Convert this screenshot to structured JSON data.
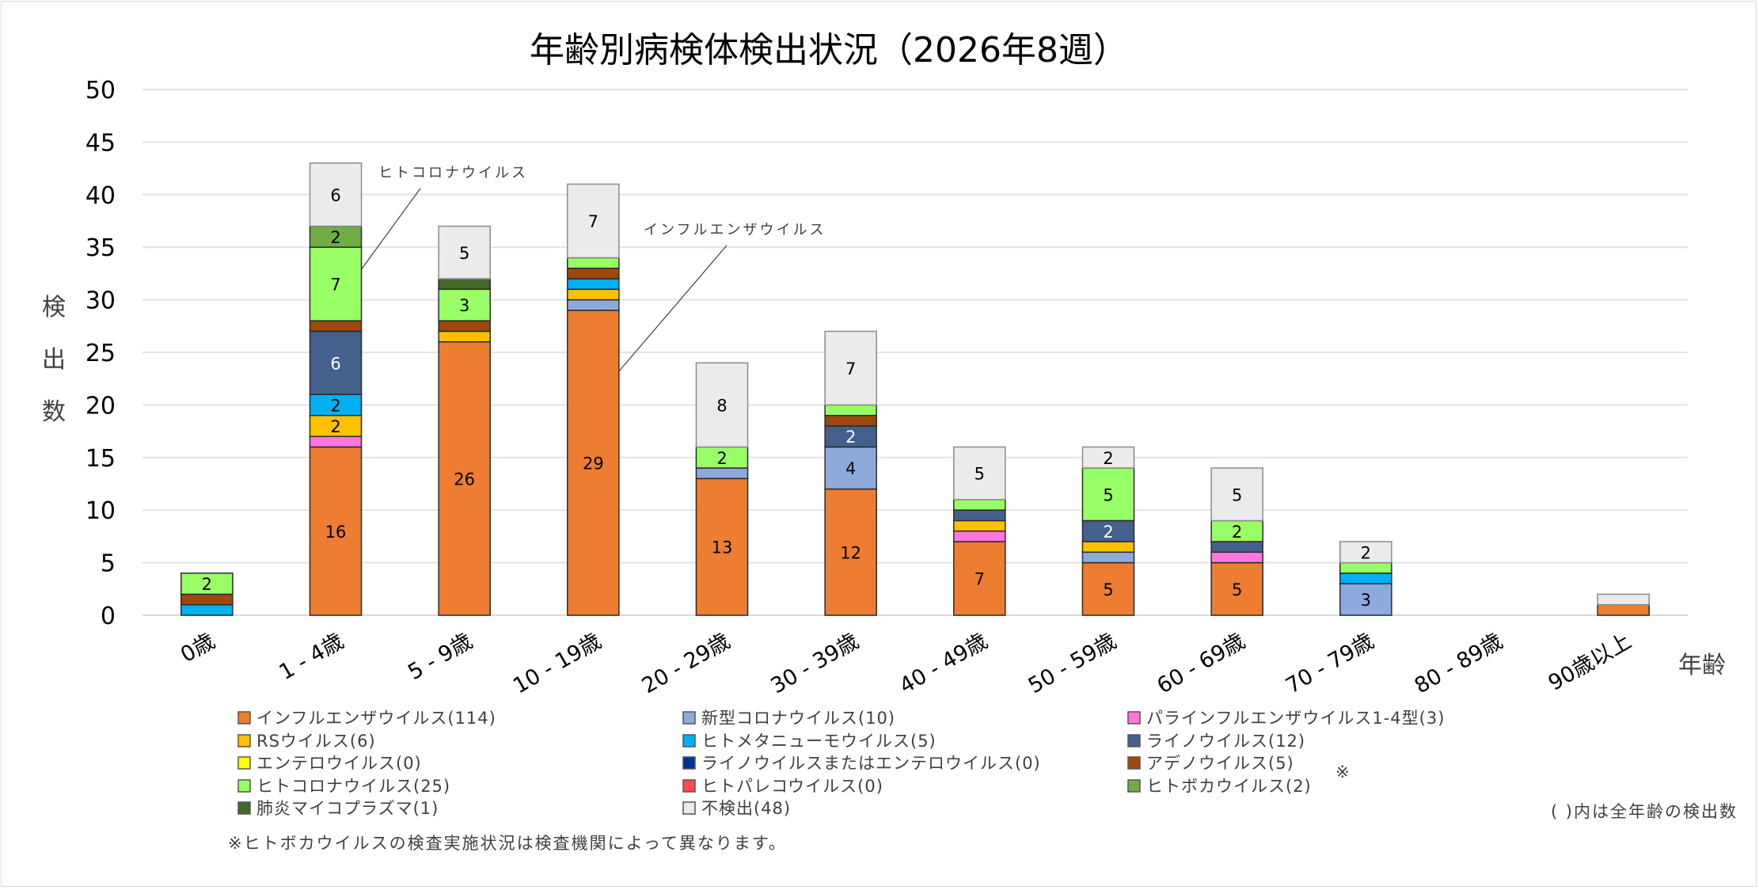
{
  "chart_data": {
    "type": "bar",
    "stacked": true,
    "title": "年齢別病検体検出状況（2026年8週）",
    "xlabel": "年齢",
    "ylabel": "検出数",
    "ylim": [
      0,
      50
    ],
    "yticks": [
      0,
      5,
      10,
      15,
      20,
      25,
      30,
      35,
      40,
      45,
      50
    ],
    "grid": true,
    "legend_position": "bottom",
    "categories": [
      "0歳",
      "1 - 4歳",
      "5 - 9歳",
      "10 - 19歳",
      "20 - 29歳",
      "30 - 39歳",
      "40 - 49歳",
      "50 - 59歳",
      "60 - 69歳",
      "70 - 79歳",
      "80 - 89歳",
      "90歳以上"
    ],
    "series": [
      {
        "name": "インフルエンザウイルス",
        "total": 114,
        "color": "#ED7D31",
        "label_color": "#000000",
        "values": [
          0,
          16,
          26,
          29,
          13,
          12,
          7,
          5,
          5,
          0,
          0,
          1
        ]
      },
      {
        "name": "新型コロナウイルス",
        "total": 10,
        "color": "#8EA9DB",
        "label_color": "#000000",
        "values": [
          0,
          0,
          0,
          1,
          1,
          4,
          0,
          1,
          0,
          3,
          0,
          0
        ]
      },
      {
        "name": "パラインフルエンザウイルス1-4型",
        "total": 3,
        "color": "#FF77DD",
        "label_color": "#000000",
        "values": [
          0,
          1,
          0,
          0,
          0,
          0,
          1,
          0,
          1,
          0,
          0,
          0
        ]
      },
      {
        "name": "RSウイルス",
        "total": 6,
        "color": "#FFC000",
        "label_color": "#000000",
        "values": [
          0,
          2,
          1,
          1,
          0,
          0,
          1,
          1,
          0,
          0,
          0,
          0
        ]
      },
      {
        "name": "ヒトメタニューモウイルス",
        "total": 5,
        "color": "#00B0F0",
        "label_color": "#000000",
        "values": [
          1,
          2,
          0,
          1,
          0,
          0,
          0,
          0,
          0,
          1,
          0,
          0
        ]
      },
      {
        "name": "ライノウイルス",
        "total": 12,
        "color": "#44618E",
        "label_color": "#ffffff",
        "values": [
          0,
          6,
          0,
          0,
          0,
          2,
          1,
          2,
          1,
          0,
          0,
          0
        ]
      },
      {
        "name": "エンテロウイルス",
        "total": 0,
        "color": "#FFFF00",
        "label_color": "#000000",
        "values": [
          0,
          0,
          0,
          0,
          0,
          0,
          0,
          0,
          0,
          0,
          0,
          0
        ]
      },
      {
        "name": "ライノウイルスまたはエンテロウイルス",
        "total": 0,
        "color": "#003399",
        "label_color": "#ffffff",
        "values": [
          0,
          0,
          0,
          0,
          0,
          0,
          0,
          0,
          0,
          0,
          0,
          0
        ]
      },
      {
        "name": "アデノウイルス",
        "total": 5,
        "color": "#9E480E",
        "label_color": "#ffffff",
        "values": [
          1,
          1,
          1,
          1,
          0,
          1,
          0,
          0,
          0,
          0,
          0,
          0
        ]
      },
      {
        "name": "ヒトコロナウイルス",
        "total": 25,
        "color": "#99FF66",
        "label_color": "#000000",
        "values": [
          2,
          7,
          3,
          1,
          2,
          1,
          1,
          5,
          2,
          1,
          0,
          0
        ]
      },
      {
        "name": "ヒトパレコウイルス",
        "total": 0,
        "color": "#FF4B4B",
        "label_color": "#000000",
        "values": [
          0,
          0,
          0,
          0,
          0,
          0,
          0,
          0,
          0,
          0,
          0,
          0
        ]
      },
      {
        "name": "ヒトボカウイルス",
        "total": 2,
        "color": "#70AD47",
        "label_color": "#000000",
        "values": [
          0,
          2,
          0,
          0,
          0,
          0,
          0,
          0,
          0,
          0,
          0,
          0
        ]
      },
      {
        "name": "肺炎マイコプラズマ",
        "total": 1,
        "color": "#43682B",
        "label_color": "#ffffff",
        "values": [
          0,
          0,
          1,
          0,
          0,
          0,
          0,
          0,
          0,
          0,
          0,
          0
        ]
      },
      {
        "name": "不検出",
        "total": 48,
        "color": "#EBEBEB",
        "label_color": "#000000",
        "values": [
          0,
          6,
          5,
          7,
          8,
          7,
          5,
          2,
          5,
          2,
          0,
          1
        ]
      }
    ],
    "annotations": [
      {
        "text": "ヒトコロナウイルス",
        "category": "1 - 4歳",
        "series": "ヒトコロナウイルス"
      },
      {
        "text": "インフルエンザウイルス",
        "category": "10 - 19歳",
        "series": "インフルエンザウイルス"
      }
    ],
    "legend_marker": "※",
    "legend_marker_after": "ヒトボカウイルス",
    "note_totals": "( )内は全年齢の検出数",
    "footnote": "※ヒトボカウイルスの検査実施状況は検査機関によって異なります。"
  }
}
